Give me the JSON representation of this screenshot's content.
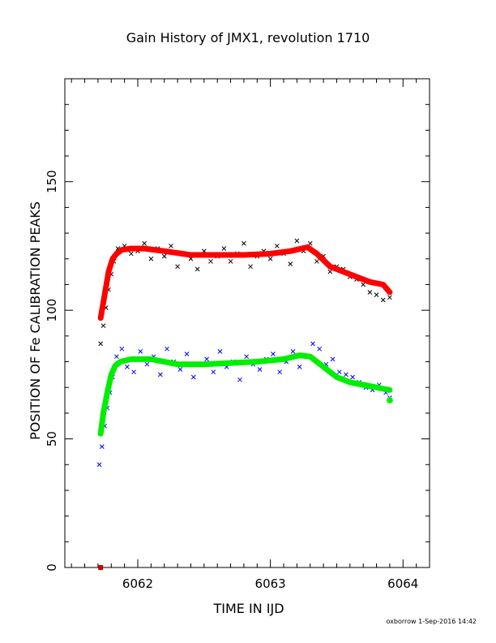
{
  "chart_data": {
    "type": "scatter",
    "title": "Gain History of JMX1, revolution 1710",
    "xlabel": "TIME IN IJD",
    "ylabel": "POSITION OF Fe CALIBRATION PEAKS",
    "xlim": [
      6061.45,
      6064.2
    ],
    "ylim": [
      0,
      190
    ],
    "x_ticks": [
      6062,
      6063,
      6064
    ],
    "x_tick_labels": [
      "6062",
      "6063",
      "6064"
    ],
    "y_ticks": [
      0,
      50,
      100,
      150
    ],
    "y_tick_labels": [
      "0",
      "50",
      "100",
      "150"
    ],
    "grid": false,
    "footer": "oxborrow  1-Sep-2016 14:42",
    "colors": {
      "upper_raw": "#000000",
      "upper_fit": "#ff0000",
      "lower_raw": "#0000ff",
      "lower_fit": "#00ee00",
      "marker": "#cc0000"
    },
    "series": [
      {
        "role": "upper_raw",
        "style": "x-markers",
        "x": [
          6061.72,
          6061.74,
          6061.76,
          6061.78,
          6061.8,
          6061.82,
          6061.85,
          6061.9,
          6061.95,
          6062.0,
          6062.05,
          6062.1,
          6062.15,
          6062.2,
          6062.25,
          6062.3,
          6062.35,
          6062.4,
          6062.45,
          6062.5,
          6062.55,
          6062.6,
          6062.65,
          6062.7,
          6062.75,
          6062.8,
          6062.85,
          6062.9,
          6062.95,
          6063.0,
          6063.05,
          6063.1,
          6063.15,
          6063.2,
          6063.25,
          6063.3,
          6063.35,
          6063.4,
          6063.45,
          6063.5,
          6063.55,
          6063.6,
          6063.65,
          6063.7,
          6063.75,
          6063.8,
          6063.85,
          6063.9
        ],
        "y": [
          87,
          94,
          101,
          108,
          114,
          119,
          124,
          125,
          122,
          123,
          126,
          120,
          124,
          121,
          125,
          117,
          122,
          120,
          116,
          123,
          119,
          121,
          124,
          119,
          122,
          126,
          117,
          121,
          123,
          120,
          125,
          122,
          118,
          127,
          123,
          126,
          119,
          121,
          115,
          117,
          116,
          113,
          112,
          110,
          107,
          106,
          104,
          105
        ]
      },
      {
        "role": "upper_fit",
        "style": "thick-line",
        "x": [
          6061.72,
          6061.75,
          6061.78,
          6061.81,
          6061.84,
          6061.88,
          6061.95,
          6062.05,
          6062.2,
          6062.4,
          6062.6,
          6062.8,
          6063.0,
          6063.15,
          6063.28,
          6063.35,
          6063.45,
          6063.55,
          6063.65,
          6063.75,
          6063.85,
          6063.9
        ],
        "y": [
          97,
          106,
          115,
          120,
          122,
          123.5,
          124,
          124,
          123,
          121.5,
          121.5,
          121.5,
          122,
          123,
          124.5,
          122,
          117,
          115,
          113,
          111,
          110,
          107
        ]
      },
      {
        "role": "lower_raw",
        "style": "x-markers",
        "x": [
          6061.71,
          6061.73,
          6061.75,
          6061.77,
          6061.79,
          6061.81,
          6061.84,
          6061.88,
          6061.92,
          6061.97,
          6062.02,
          6062.07,
          6062.12,
          6062.17,
          6062.22,
          6062.27,
          6062.32,
          6062.37,
          6062.42,
          6062.47,
          6062.52,
          6062.57,
          6062.62,
          6062.67,
          6062.72,
          6062.77,
          6062.82,
          6062.87,
          6062.92,
          6062.97,
          6063.02,
          6063.07,
          6063.12,
          6063.17,
          6063.22,
          6063.27,
          6063.32,
          6063.37,
          6063.42,
          6063.47,
          6063.52,
          6063.57,
          6063.62,
          6063.67,
          6063.72,
          6063.77,
          6063.82,
          6063.87,
          6063.9
        ],
        "y": [
          40,
          47,
          55,
          62,
          68,
          74,
          82,
          85,
          78,
          76,
          84,
          79,
          82,
          75,
          85,
          80,
          77,
          83,
          74,
          79,
          81,
          76,
          84,
          78,
          80,
          73,
          82,
          79,
          77,
          81,
          83,
          76,
          80,
          84,
          78,
          82,
          87,
          85,
          79,
          81,
          76,
          75,
          74,
          72,
          70,
          69,
          71,
          68,
          66
        ]
      },
      {
        "role": "lower_fit",
        "style": "thick-line",
        "x": [
          6061.72,
          6061.74,
          6061.77,
          6061.8,
          6061.83,
          6061.87,
          6061.95,
          6062.1,
          6062.3,
          6062.5,
          6062.7,
          6062.9,
          6063.1,
          6063.22,
          6063.3,
          6063.4,
          6063.5,
          6063.6,
          6063.7,
          6063.8,
          6063.9
        ],
        "y": [
          52,
          60,
          68,
          75,
          78.5,
          80,
          81,
          81,
          79,
          79,
          79.5,
          80,
          81,
          82.5,
          82,
          78,
          74,
          72,
          71,
          70,
          69
        ]
      }
    ],
    "markers": [
      {
        "role": "axis_marker",
        "x": 6061.72,
        "y": 0
      },
      {
        "role": "end_point_lower",
        "x": 6063.9,
        "y": 65
      }
    ]
  }
}
